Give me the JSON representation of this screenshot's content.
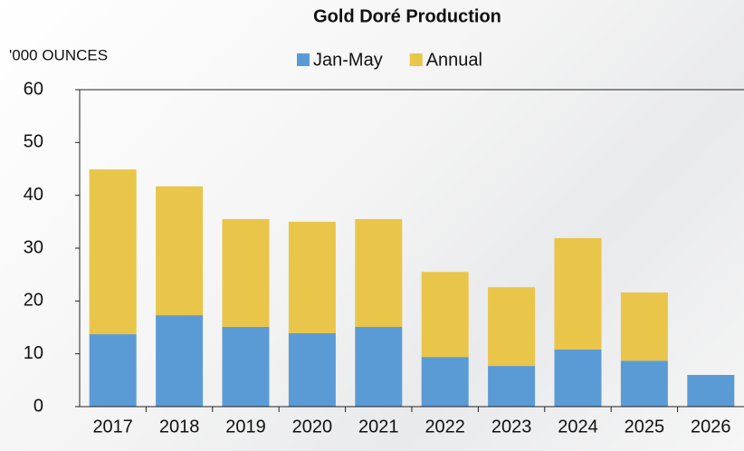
{
  "chart_data": {
    "type": "stacked_bar",
    "title": "Gold Doré Production",
    "y_label": "'000 OUNCES",
    "categories": [
      "2017",
      "2018",
      "2019",
      "2020",
      "2021",
      "2022",
      "2023",
      "2024",
      "2025",
      "2026"
    ],
    "series": [
      {
        "name": "Jan-May",
        "color": "#5b9bd5",
        "values": [
          13.7,
          17.3,
          15.1,
          13.9,
          15.1,
          9.4,
          7.7,
          10.8,
          8.7,
          6.0
        ]
      },
      {
        "name": "Annual",
        "color": "#e9c54a",
        "values": [
          31.2,
          24.4,
          20.4,
          21.1,
          20.4,
          16.1,
          14.9,
          21.1,
          12.9,
          null
        ]
      }
    ],
    "ylim": [
      0,
      60
    ],
    "yticks": [
      0,
      10,
      20,
      30,
      40,
      50,
      60
    ],
    "grid": false,
    "legend": "top"
  }
}
